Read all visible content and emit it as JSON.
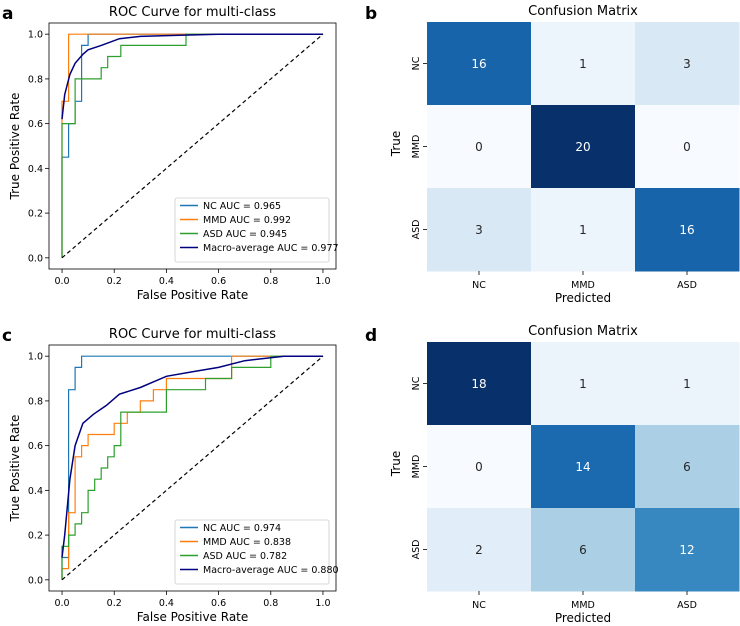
{
  "panels": [
    {
      "letter": "a",
      "kind": "roc"
    },
    {
      "letter": "b",
      "kind": "cm"
    },
    {
      "letter": "c",
      "kind": "roc"
    },
    {
      "letter": "d",
      "kind": "cm"
    }
  ],
  "colors": {
    "NC": "#1f77b4",
    "MMD": "#ff7f0e",
    "ASD": "#2ca02c",
    "Macro": "#000080",
    "diagonal": "#000000"
  },
  "chart_data": [
    {
      "type": "line",
      "panel": "a",
      "title": "ROC Curve for multi-class",
      "xlabel": "False Positive Rate",
      "ylabel": "True Positive Rate",
      "xlim": [
        -0.05,
        1.05
      ],
      "ylim": [
        -0.05,
        1.05
      ],
      "xticks": [
        "0.0",
        "0.2",
        "0.4",
        "0.6",
        "0.8",
        "1.0"
      ],
      "yticks": [
        "0.0",
        "0.2",
        "0.4",
        "0.6",
        "0.8",
        "1.0"
      ],
      "legend_position": "lower-right",
      "series": [
        {
          "name": "NC",
          "label": "NC AUC = 0.965",
          "x": [
            0,
            0,
            0.025,
            0.025,
            0.05,
            0.05,
            0.075,
            0.075,
            0.1,
            0.1,
            1
          ],
          "y": [
            0,
            0.45,
            0.45,
            0.6,
            0.6,
            0.7,
            0.7,
            0.95,
            0.95,
            1,
            1
          ]
        },
        {
          "name": "MMD",
          "label": "MMD AUC = 0.992",
          "x": [
            0,
            0,
            0.025,
            0.025,
            1
          ],
          "y": [
            0,
            0.7,
            0.7,
            1,
            1
          ]
        },
        {
          "name": "ASD",
          "label": "ASD AUC = 0.945",
          "x": [
            0,
            0,
            0.05,
            0.05,
            0.1,
            0.1,
            0.15,
            0.15,
            0.175,
            0.175,
            0.2,
            0.2,
            0.225,
            0.225,
            0.475,
            0.475,
            1
          ],
          "y": [
            0,
            0.6,
            0.6,
            0.8,
            0.8,
            0.8,
            0.8,
            0.85,
            0.85,
            0.9,
            0.9,
            0.9,
            0.9,
            0.95,
            0.95,
            1,
            1
          ]
        },
        {
          "name": "Macro",
          "label": "Macro-average AUC = 0.977",
          "x": [
            0,
            0.01,
            0.03,
            0.05,
            0.08,
            0.1,
            0.15,
            0.22,
            0.3,
            0.45,
            0.6,
            0.8,
            1
          ],
          "y": [
            0.62,
            0.73,
            0.82,
            0.87,
            0.91,
            0.93,
            0.95,
            0.98,
            0.99,
            0.995,
            1,
            1,
            1
          ]
        },
        {
          "name": "Chance",
          "label": "",
          "x": [
            0,
            1
          ],
          "y": [
            0,
            1
          ],
          "dashed": true
        }
      ]
    },
    {
      "type": "heatmap",
      "panel": "b",
      "title": "Confusion Matrix",
      "xlabel": "Predicted",
      "ylabel": "True",
      "categories": [
        "NC",
        "MMD",
        "ASD"
      ],
      "values": [
        [
          16,
          1,
          3
        ],
        [
          0,
          20,
          0
        ],
        [
          3,
          1,
          16
        ]
      ],
      "vmax": 20
    },
    {
      "type": "line",
      "panel": "c",
      "title": "ROC Curve for multi-class",
      "xlabel": "False Positive Rate",
      "ylabel": "True Positive Rate",
      "xlim": [
        -0.05,
        1.05
      ],
      "ylim": [
        -0.05,
        1.05
      ],
      "xticks": [
        "0.0",
        "0.2",
        "0.4",
        "0.6",
        "0.8",
        "1.0"
      ],
      "yticks": [
        "0.0",
        "0.2",
        "0.4",
        "0.6",
        "0.8",
        "1.0"
      ],
      "legend_position": "lower-right",
      "series": [
        {
          "name": "NC",
          "label": "NC AUC = 0.974",
          "x": [
            0,
            0,
            0.025,
            0.025,
            0.05,
            0.05,
            0.075,
            0.075,
            1
          ],
          "y": [
            0,
            0.1,
            0.1,
            0.85,
            0.85,
            0.95,
            0.95,
            1,
            1
          ]
        },
        {
          "name": "MMD",
          "label": "MMD AUC = 0.838",
          "x": [
            0,
            0,
            0.025,
            0.025,
            0.05,
            0.05,
            0.075,
            0.075,
            0.1,
            0.1,
            0.15,
            0.15,
            0.2,
            0.2,
            0.25,
            0.25,
            0.3,
            0.3,
            0.35,
            0.35,
            0.4,
            0.4,
            0.65,
            0.65,
            1
          ],
          "y": [
            0,
            0.05,
            0.05,
            0.3,
            0.3,
            0.55,
            0.55,
            0.6,
            0.6,
            0.65,
            0.65,
            0.65,
            0.65,
            0.7,
            0.7,
            0.75,
            0.75,
            0.8,
            0.8,
            0.85,
            0.85,
            0.9,
            0.9,
            1,
            1
          ]
        },
        {
          "name": "ASD",
          "label": "ASD AUC = 0.782",
          "x": [
            0,
            0,
            0.025,
            0.025,
            0.05,
            0.05,
            0.075,
            0.075,
            0.1,
            0.1,
            0.125,
            0.125,
            0.15,
            0.15,
            0.175,
            0.175,
            0.2,
            0.2,
            0.225,
            0.225,
            0.3,
            0.3,
            0.4,
            0.4,
            0.55,
            0.55,
            0.65,
            0.65,
            0.8,
            0.8,
            1
          ],
          "y": [
            0,
            0.15,
            0.15,
            0.2,
            0.2,
            0.25,
            0.25,
            0.3,
            0.3,
            0.4,
            0.4,
            0.45,
            0.45,
            0.5,
            0.5,
            0.55,
            0.55,
            0.6,
            0.6,
            0.75,
            0.75,
            0.75,
            0.75,
            0.85,
            0.85,
            0.9,
            0.9,
            0.95,
            0.95,
            1,
            1
          ]
        },
        {
          "name": "Macro",
          "label": "Macro-average AUC = 0.880",
          "x": [
            0,
            0.01,
            0.03,
            0.05,
            0.08,
            0.12,
            0.17,
            0.22,
            0.3,
            0.4,
            0.5,
            0.6,
            0.7,
            0.85,
            1
          ],
          "y": [
            0.1,
            0.2,
            0.45,
            0.6,
            0.7,
            0.74,
            0.78,
            0.83,
            0.86,
            0.91,
            0.93,
            0.95,
            0.98,
            1,
            1
          ]
        },
        {
          "name": "Chance",
          "label": "",
          "x": [
            0,
            1
          ],
          "y": [
            0,
            1
          ],
          "dashed": true
        }
      ]
    },
    {
      "type": "heatmap",
      "panel": "d",
      "title": "Confusion Matrix",
      "xlabel": "Predicted",
      "ylabel": "True",
      "categories": [
        "NC",
        "MMD",
        "ASD"
      ],
      "values": [
        [
          18,
          1,
          1
        ],
        [
          0,
          14,
          6
        ],
        [
          2,
          6,
          12
        ]
      ],
      "vmax": 18
    }
  ]
}
